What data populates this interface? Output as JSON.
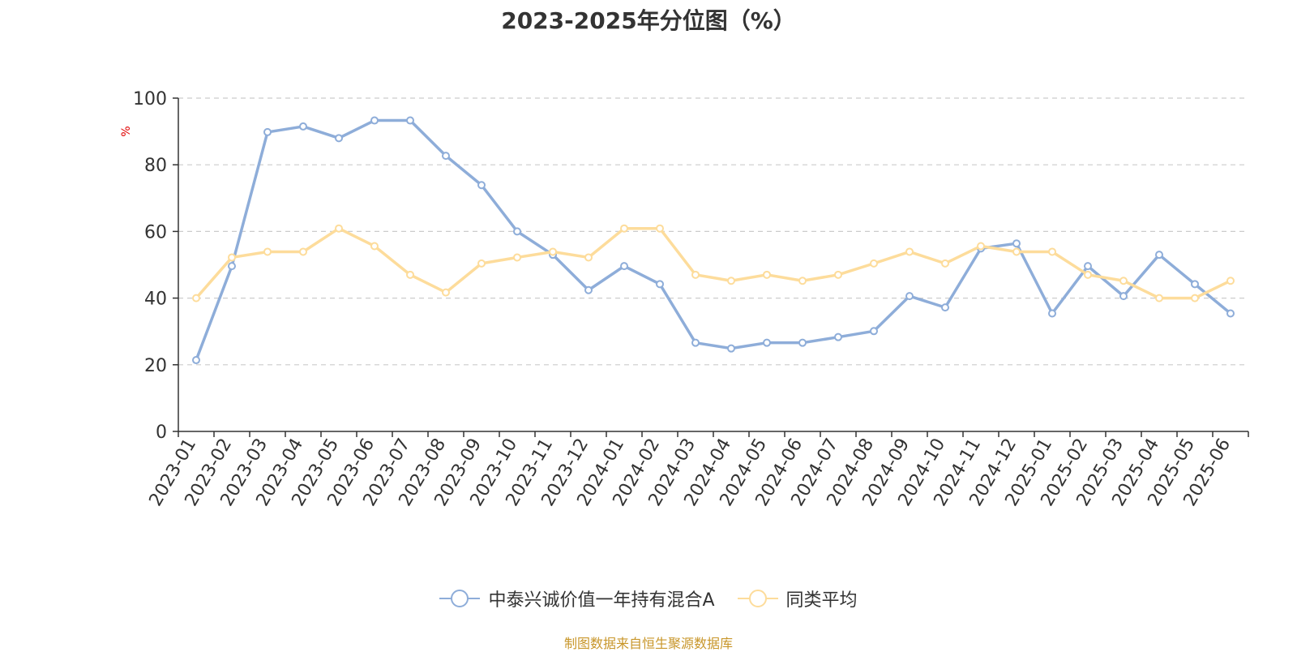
{
  "chart_data": {
    "type": "line",
    "title": "2023-2025年分位图（%）",
    "ylabel": "%",
    "ylim": [
      0,
      100
    ],
    "yticks": [
      0,
      20,
      40,
      60,
      80,
      100
    ],
    "grid": true,
    "legend_position": "bottom-center",
    "categories": [
      "2023-01",
      "2023-02",
      "2023-03",
      "2023-04",
      "2023-05",
      "2023-06",
      "2023-07",
      "2023-08",
      "2023-09",
      "2023-10",
      "2023-11",
      "2023-12",
      "2024-01",
      "2024-02",
      "2024-03",
      "2024-04",
      "2024-05",
      "2024-06",
      "2024-07",
      "2024-08",
      "2024-09",
      "2024-10",
      "2024-11",
      "2024-12",
      "2025-01",
      "2025-02",
      "2025-03",
      "2025-04",
      "2025-05",
      "2025-06"
    ],
    "series": [
      {
        "name": "中泰兴诚价值一年持有混合A",
        "color": "#8eadd9",
        "values": [
          21.4,
          49.6,
          89.8,
          91.5,
          88.0,
          93.3,
          93.3,
          82.7,
          73.9,
          60.0,
          53.0,
          42.4,
          49.6,
          44.2,
          26.6,
          24.9,
          26.6,
          26.6,
          28.3,
          30.1,
          40.6,
          37.2,
          54.9,
          56.4,
          35.4,
          49.6,
          40.6,
          53.0,
          44.2,
          35.4
        ]
      },
      {
        "name": "同类平均",
        "color": "#fddc9b",
        "values": [
          40.0,
          52.2,
          53.9,
          53.9,
          60.9,
          55.6,
          47.0,
          41.7,
          50.4,
          52.2,
          53.9,
          52.2,
          60.9,
          60.9,
          47.0,
          45.2,
          47.0,
          45.2,
          47.0,
          50.4,
          53.9,
          50.4,
          55.6,
          53.9,
          53.9,
          47.0,
          45.2,
          40.0,
          40.0,
          45.2
        ]
      }
    ]
  },
  "source_note": "制图数据来自恒生聚源数据库"
}
